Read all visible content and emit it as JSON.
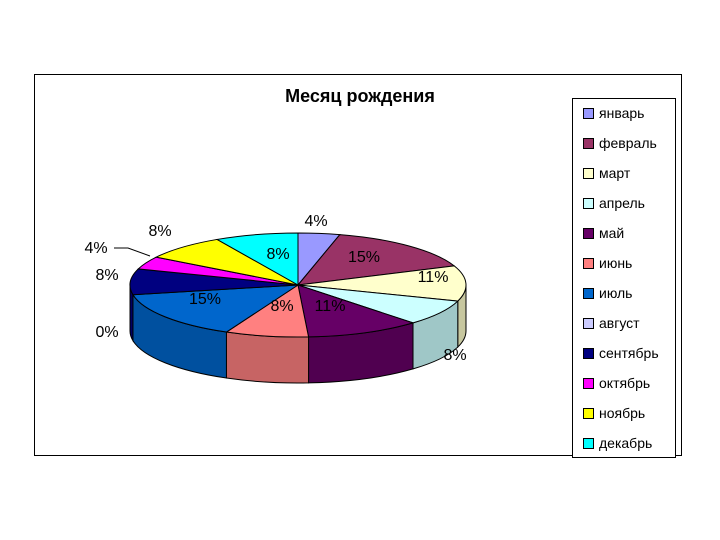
{
  "chart_data": {
    "type": "pie",
    "title": "Месяц рождения",
    "legend_position": "right",
    "slices": [
      {
        "name": "январь",
        "label": "4%",
        "value": 4,
        "color": "#9999ff"
      },
      {
        "name": "февраль",
        "label": "15%",
        "value": 15,
        "color": "#993366"
      },
      {
        "name": "март",
        "label": "11%",
        "value": 11,
        "color": "#ffffcc"
      },
      {
        "name": "апрель",
        "label": "8%",
        "value": 8,
        "color": "#ccffff"
      },
      {
        "name": "май",
        "label": "11%",
        "value": 11,
        "color": "#660066"
      },
      {
        "name": "июнь",
        "label": "8%",
        "value": 8,
        "color": "#ff8080"
      },
      {
        "name": "июль",
        "label": "15%",
        "value": 15,
        "color": "#0066cc"
      },
      {
        "name": "август",
        "label": "0%",
        "value": 0,
        "color": "#ccccff"
      },
      {
        "name": "сентябрь",
        "label": "8%",
        "value": 8,
        "color": "#000080"
      },
      {
        "name": "октябрь",
        "label": "4%",
        "value": 4,
        "color": "#ff00ff"
      },
      {
        "name": "ноябрь",
        "label": "8%",
        "value": 8,
        "color": "#ffff00"
      },
      {
        "name": "декабрь",
        "label": "8%",
        "value": 8,
        "color": "#00ffff"
      }
    ]
  }
}
